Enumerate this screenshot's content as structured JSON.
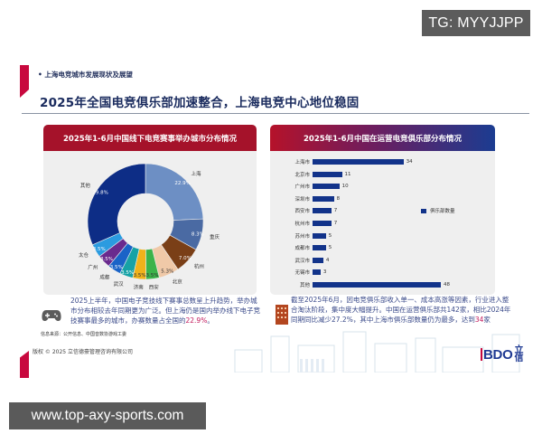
{
  "overlays": {
    "top_badge": "TG: MYYJJPP",
    "bottom_badge": "www.top-axy-sports.com"
  },
  "slide": {
    "section_label": "• 上海电竞城市发展现状及展望",
    "title": "2025年全国电竞俱乐部加速整合，上海电竞中心地位稳固",
    "left_panel": {
      "title": "2025年1-6月中国线下电竞赛事举办城市分布情况",
      "note_prefix": "2025上半年，中国电子竞技线下赛事总数呈上升趋势，举办城市分布相较去年同期更为广泛。但上海仍是国内举办线下电子竞技赛事最多的城市，办赛数量占全国的",
      "note_highlight": "22.9%",
      "note_suffix": "。",
      "icon": "gamepad-icon"
    },
    "right_panel": {
      "title": "2025年1-6月中国在运营电竞俱乐部分布情况",
      "legend": "俱乐部数量",
      "note_prefix": "截至2025年6月，因电竞俱乐部收入单一、成本高涨等因素，行业进入整合淘汰阶段，集中度大幅提升。中国在运营俱乐部共142家，相比2024年同期同比减少27.2%，其中上海市俱乐部数量仍为最多，达到",
      "note_highlight": "34",
      "note_suffix": "家",
      "icon": "building-icon"
    },
    "source": "信息来源：公开信息、中国音数协游戏工委",
    "copyright": "版权 © 2025 立信德豪管理咨询有限公司",
    "logo": {
      "text": "BDO",
      "cn": "立信"
    }
  },
  "colors": {
    "accent_red": "#c8093e",
    "title_navy": "#1a2b5e",
    "bar_blue": "#12338a",
    "highlight": "#c2185b"
  },
  "chart_data": [
    {
      "type": "pie",
      "variant": "donut",
      "title": "2025年1-6月中国线下电竞赛事举办城市分布情况",
      "categories": [
        "上海",
        "重庆",
        "杭州",
        "北京",
        "西安",
        "济南",
        "武汉",
        "成都",
        "广州",
        "太仓",
        "其他"
      ],
      "values": [
        22.9,
        8.3,
        7.0,
        5.3,
        3.5,
        3.5,
        3.5,
        3.5,
        3.5,
        3.5,
        29.8
      ],
      "labels": [
        "22.9%",
        "8.3%",
        "7.0%",
        "5.3%",
        "3.5%",
        "3.5%",
        "3.5%",
        "3.5%",
        "3.5%",
        "3.5%",
        "29.8%"
      ],
      "colors": [
        "#6d8fc4",
        "#4a6aa3",
        "#7a3f17",
        "#f0c9a8",
        "#3bb34a",
        "#f0b21b",
        "#17a2a6",
        "#1a63c7",
        "#6a2a8e",
        "#2b9be0",
        "#0d2d86"
      ]
    },
    {
      "type": "bar",
      "orientation": "horizontal",
      "title": "2025年1-6月中国在运营电竞俱乐部分布情况",
      "categories": [
        "上海市",
        "北京市",
        "广州市",
        "深圳市",
        "西安市",
        "杭州市",
        "苏州市",
        "成都市",
        "武汉市",
        "无锡市",
        "其他"
      ],
      "series": [
        {
          "name": "俱乐部数量",
          "values": [
            34,
            11,
            10,
            8,
            7,
            7,
            5,
            5,
            4,
            3,
            48
          ]
        }
      ],
      "legend_position": "right",
      "grid": false
    }
  ]
}
